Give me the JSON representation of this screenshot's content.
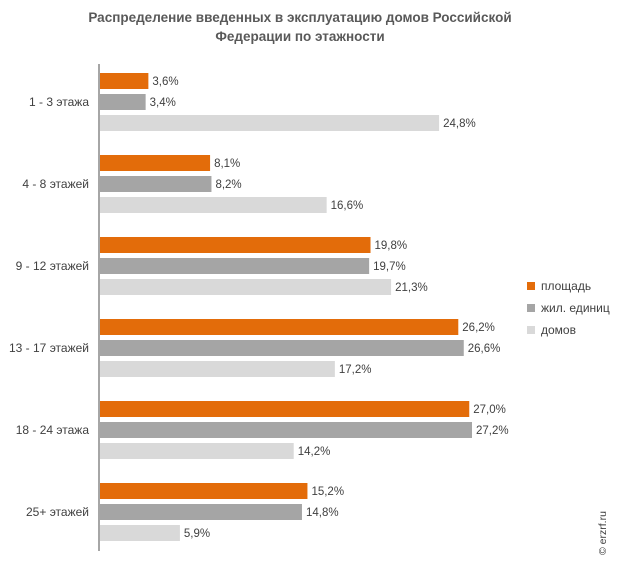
{
  "chart_data": {
    "type": "bar",
    "orientation": "horizontal",
    "title": [
      "Распределение введенных в эксплуатацию  домов Российской",
      "Федерации по этажности"
    ],
    "categories": [
      "1 - 3 этажа",
      "4 - 8 этажей",
      "9 - 12 этажей",
      "13 - 17 этажей",
      "18 - 24 этажа",
      "25+ этажей"
    ],
    "series": [
      {
        "name": "площадь",
        "color": "#E36C0A",
        "values": [
          3.6,
          8.1,
          19.8,
          26.2,
          27.0,
          15.2
        ],
        "labels": [
          "3,6%",
          "8,1%",
          "19,8%",
          "26,2%",
          "27,0%",
          "15,2%"
        ]
      },
      {
        "name": "жил. единиц",
        "color": "#A5A5A5",
        "values": [
          3.4,
          8.2,
          19.7,
          26.6,
          27.2,
          14.8
        ],
        "labels": [
          "3,4%",
          "8,2%",
          "19,7%",
          "26,6%",
          "27,2%",
          "14,8%"
        ]
      },
      {
        "name": "домов",
        "color": "#D9D9D9",
        "values": [
          24.8,
          16.6,
          21.3,
          17.2,
          14.2,
          5.9
        ],
        "labels": [
          "24,8%",
          "16,6%",
          "21,3%",
          "17,2%",
          "14,2%",
          "5,9%"
        ]
      }
    ],
    "xlim": [
      0,
      27.2
    ],
    "grid": false,
    "legend_position": "right"
  },
  "watermark": "© erzrf.ru"
}
